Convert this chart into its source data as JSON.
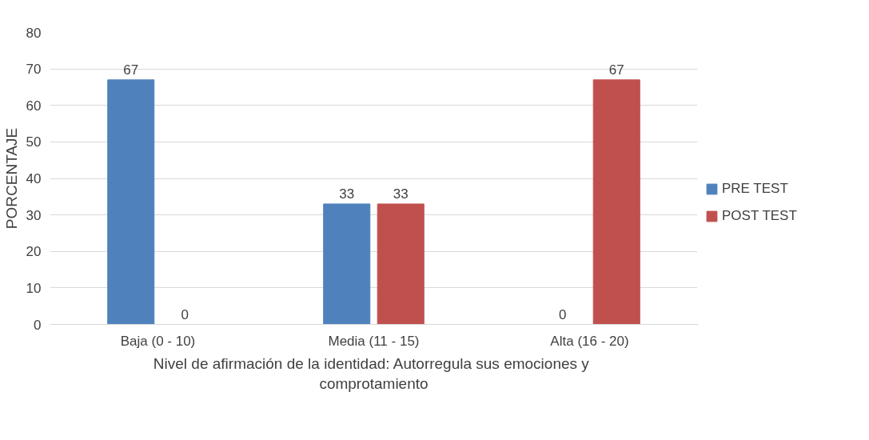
{
  "chart_data": {
    "type": "bar",
    "categories": [
      "Baja (0 - 10)",
      "Media (11 - 15)",
      "Alta (16 - 20)"
    ],
    "series": [
      {
        "name": "PRE TEST",
        "color": "#4f81bd",
        "values": [
          67,
          33,
          0
        ]
      },
      {
        "name": "POST TEST",
        "color": "#c0504d",
        "values": [
          0,
          33,
          67
        ]
      }
    ],
    "xlabel": "Nivel de afirmación de la identidad: Autorregula sus emociones  y\ncomprotamiento",
    "ylabel": "PORCENTAJE",
    "ylim": [
      0,
      80
    ],
    "yticks": [
      0,
      10,
      20,
      30,
      40,
      50,
      60,
      70,
      80
    ],
    "grid": "y",
    "legend": "right",
    "data_labels": true
  }
}
